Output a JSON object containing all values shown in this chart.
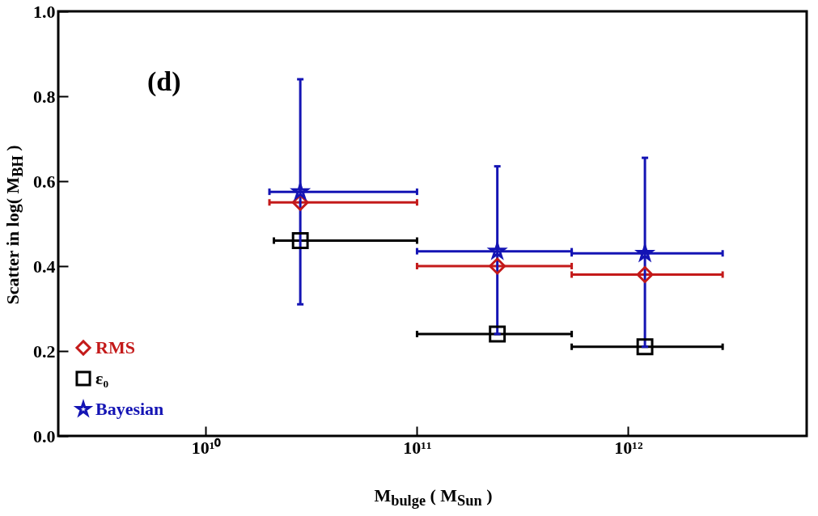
{
  "chart_data": {
    "type": "scatter",
    "xlabel": "M$_{bulge}$ ( M$_{Sun}$ )",
    "ylabel": "Scatter in  log( M$_{BH}$ )",
    "annotations": [
      "(d)"
    ],
    "log": "x",
    "legend": "bottom left",
    "xlim": [
      2000000000.0,
      7000000000000.0
    ],
    "ylim": [
      0,
      1
    ],
    "xticks": [
      {
        "value": 10000000000.0,
        "label": "10¹⁰"
      },
      {
        "value": 100000000000.0,
        "label": "10¹¹"
      },
      {
        "value": 1000000000000.0,
        "label": "10¹²"
      }
    ],
    "yticks": [
      {
        "value": 0,
        "label": "0.0"
      },
      0.2,
      0.4,
      0.6,
      0.8,
      {
        "value": 1,
        "label": "1.0"
      }
    ],
    "x": [
      28000000000.0,
      240000000000.0,
      1200000000000.0
    ],
    "series": [
      {
        "name": "RMS",
        "color": "#c41a1a",
        "marker": "diamond",
        "values": [
          0.55,
          0.4,
          0.38
        ],
        "xerrors": [
          [
            20000000000.0,
            100000000000.0
          ],
          [
            100000000000.0,
            540000000000.0
          ],
          [
            540000000000.0,
            2800000000000.0
          ]
        ]
      },
      {
        "name": "ε₀",
        "color": "#000000",
        "marker": "square",
        "values": [
          0.46,
          0.24,
          0.21
        ],
        "xerrors": [
          [
            21000000000.0,
            100000000000.0
          ],
          [
            100000000000.0,
            540000000000.0
          ],
          [
            540000000000.0,
            2800000000000.0
          ]
        ]
      },
      {
        "name": "Bayesian",
        "color": "#1414b4",
        "marker": "star",
        "values": [
          0.575,
          0.435,
          0.43
        ],
        "xerrors": [
          [
            20000000000.0,
            100000000000.0
          ],
          [
            100000000000.0,
            540000000000.0
          ],
          [
            540000000000.0,
            2800000000000.0
          ]
        ],
        "errors": [
          [
            0.31,
            0.84
          ],
          [
            0.24,
            0.635
          ],
          [
            0.21,
            0.655
          ]
        ]
      }
    ]
  }
}
